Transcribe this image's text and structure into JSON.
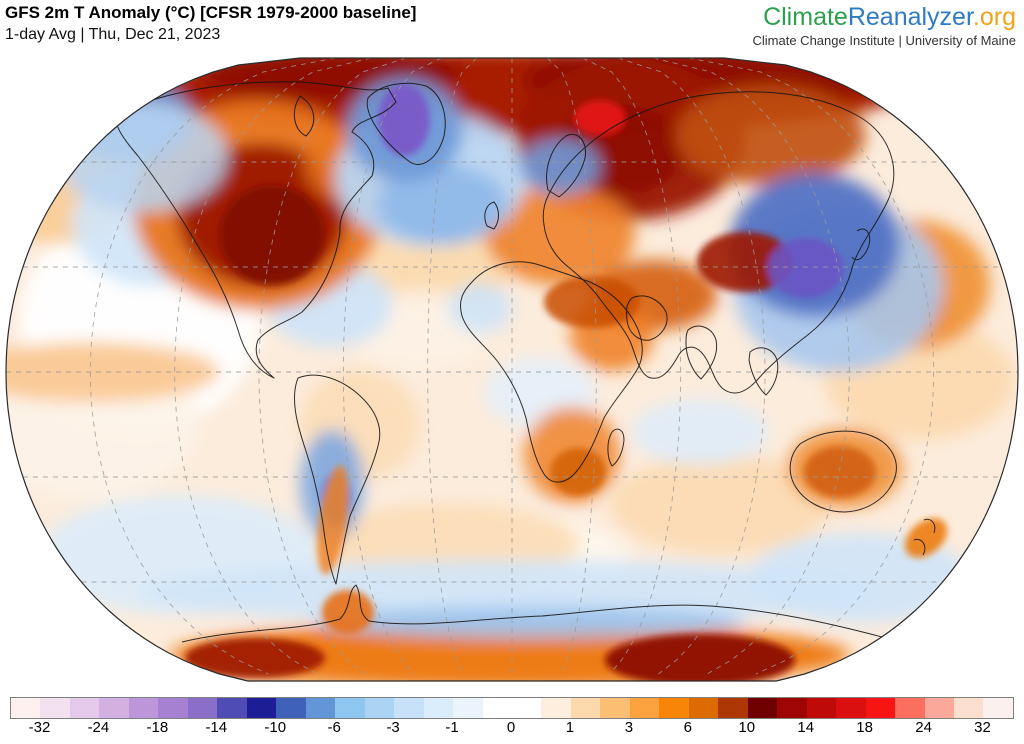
{
  "header": {
    "title": "GFS 2m T Anomaly (°C) [CFSR 1979-2000 baseline]",
    "subtitle": "1-day Avg | Thu, Dec 21, 2023"
  },
  "brand": {
    "parts": [
      {
        "text": "Climate",
        "color": "#2ca04c"
      },
      {
        "text": "Reanalyzer",
        "color": "#2e7bc4"
      },
      {
        "text": ".org",
        "color": "#f0a41e"
      }
    ],
    "tagline": "Climate Change Institute | University of Maine"
  },
  "map": {
    "type": "world-temperature-anomaly-map",
    "projection": "pseudocylindrical (Robinson-style), flattened poles",
    "graticule": "dashed gray lines every 30 degrees",
    "anomaly_regions": [
      {
        "region": "Arctic (circumpolar band)",
        "anomaly_c": "+6 to +18 warm"
      },
      {
        "region": "Central North America / US Midwest",
        "anomaly_c": "+10 to +18 strong warm"
      },
      {
        "region": "Greenland",
        "anomaly_c": "-10 to -18 strong cold (purple core)"
      },
      {
        "region": "North Atlantic south of Greenland",
        "anomaly_c": "-3 to -10 cold"
      },
      {
        "region": "Scandinavia",
        "anomaly_c": "-3 to -10 cold"
      },
      {
        "region": "Northwest Russia / Siberia",
        "anomaly_c": "+10 to +18 strong warm"
      },
      {
        "region": "East Asia (China, Korea, Japan)",
        "anomaly_c": "-6 to -14 strong cold"
      },
      {
        "region": "Tibet / western China",
        "anomaly_c": "+10 to +14 warm"
      },
      {
        "region": "Europe, Middle East, Sahel Africa",
        "anomaly_c": "+1 to +6 warm"
      },
      {
        "region": "Argentina",
        "anomaly_c": "-1 to -6 cold"
      },
      {
        "region": "Western-central Australia",
        "anomaly_c": "+3 to +10 warm"
      },
      {
        "region": "Northwest Pacific",
        "anomaly_c": "+1 to +6 warm"
      },
      {
        "region": "Tropical oceans",
        "anomaly_c": "0 to +3 slight warm"
      },
      {
        "region": "Southern Ocean",
        "anomaly_c": "-1 to -3 slight cold"
      },
      {
        "region": "Antarctic interior margin",
        "anomaly_c": "+6 to +14 warm"
      }
    ]
  },
  "colorbar": {
    "unit": "°C",
    "cells": [
      "#fdf0ee",
      "#f4e1f0",
      "#e4c9ea",
      "#d2b0df",
      "#bc96d8",
      "#a681d1",
      "#8a6ec8",
      "#4f4cb5",
      "#1d1d96",
      "#3f62b8",
      "#6495d6",
      "#8ec6f0",
      "#abd4f4",
      "#c6e1f8",
      "#dbecfb",
      "#ebf4fd",
      "#ffffff",
      "#ffffff",
      "#fdeedd",
      "#fcd9ad",
      "#fcbe72",
      "#fba23e",
      "#f98508",
      "#dd6a02",
      "#ad3805",
      "#6f0101",
      "#9e0505",
      "#bf0a0a",
      "#da1010",
      "#f81414",
      "#fa6f60",
      "#fba89a",
      "#fbe0cf",
      "#fcf0ee"
    ],
    "ticks": [
      {
        "label": "-32",
        "boundary": 1
      },
      {
        "label": "-24",
        "boundary": 3
      },
      {
        "label": "-18",
        "boundary": 5
      },
      {
        "label": "-14",
        "boundary": 7
      },
      {
        "label": "-10",
        "boundary": 9
      },
      {
        "label": "-6",
        "boundary": 11
      },
      {
        "label": "-3",
        "boundary": 13
      },
      {
        "label": "-1",
        "boundary": 15
      },
      {
        "label": "0",
        "boundary": 17
      },
      {
        "label": "1",
        "boundary": 19
      },
      {
        "label": "3",
        "boundary": 21
      },
      {
        "label": "6",
        "boundary": 23
      },
      {
        "label": "10",
        "boundary": 25
      },
      {
        "label": "14",
        "boundary": 27
      },
      {
        "label": "18",
        "boundary": 29
      },
      {
        "label": "24",
        "boundary": 31
      },
      {
        "label": "32",
        "boundary": 33
      }
    ]
  }
}
